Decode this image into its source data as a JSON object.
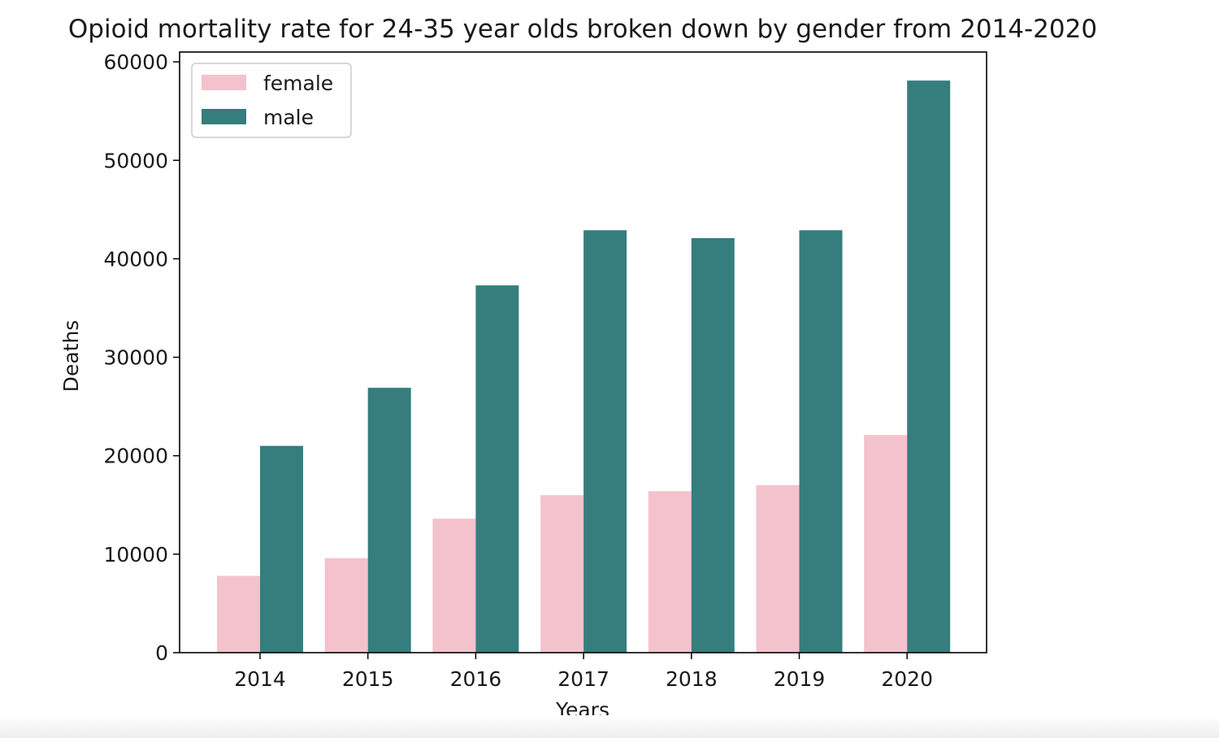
{
  "chart_data": {
    "type": "bar",
    "title": "Opioid mortality rate for 24-35 year olds broken down by gender from 2014-2020",
    "xlabel": "Years",
    "ylabel": "Deaths",
    "categories": [
      "2014",
      "2015",
      "2016",
      "2017",
      "2018",
      "2019",
      "2020"
    ],
    "ylim": [
      0,
      61000
    ],
    "yticks": [
      0,
      10000,
      20000,
      30000,
      40000,
      50000,
      60000
    ],
    "ytick_labels": [
      "0",
      "10000",
      "20000",
      "30000",
      "40000",
      "50000",
      "60000"
    ],
    "grid": false,
    "legend_position": "upper-left",
    "series": [
      {
        "name": "female",
        "color": "#f4c2cc",
        "values": [
          7800,
          9600,
          13600,
          16000,
          16400,
          17000,
          22100
        ]
      },
      {
        "name": "male",
        "color": "#367d7e",
        "values": [
          21000,
          26900,
          37300,
          42900,
          42100,
          42900,
          58100
        ]
      }
    ]
  }
}
